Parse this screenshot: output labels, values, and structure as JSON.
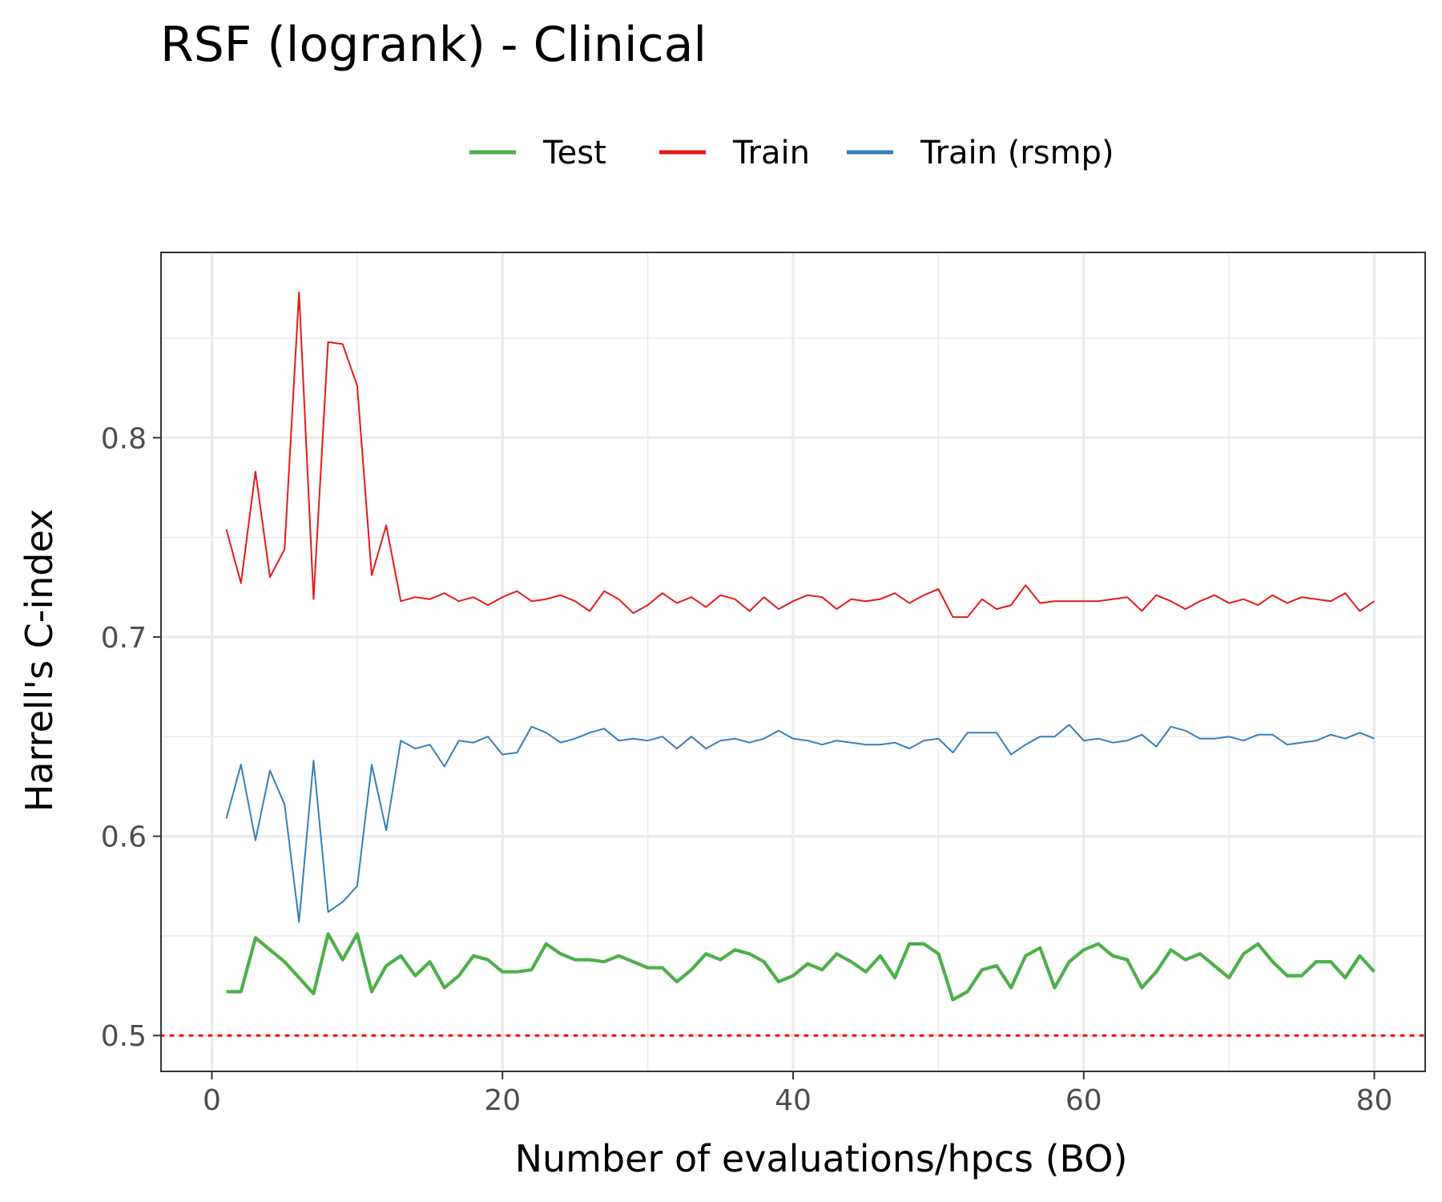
{
  "chart_data": {
    "type": "line",
    "title": "RSF (logrank) - Clinical",
    "xlabel": "Number of evaluations/hpcs (BO)",
    "ylabel": "Harrell's C-index",
    "xlim": [
      -3.5,
      83.5
    ],
    "ylim": [
      0.482,
      0.893
    ],
    "x_ticks": [
      0,
      20,
      40,
      60,
      80
    ],
    "x_tick_labels": [
      "0",
      "20",
      "40",
      "60",
      "80"
    ],
    "y_ticks": [
      0.5,
      0.6,
      0.7,
      0.8
    ],
    "y_tick_labels": [
      "0.5",
      "0.6",
      "0.7",
      "0.8"
    ],
    "grid": true,
    "legend_position": "top",
    "reference_line": {
      "y": 0.5,
      "style": "dotted",
      "color": "#FF0000"
    },
    "x": [
      1,
      2,
      3,
      4,
      5,
      6,
      7,
      8,
      9,
      10,
      11,
      12,
      13,
      14,
      15,
      16,
      17,
      18,
      19,
      20,
      21,
      22,
      23,
      24,
      25,
      26,
      27,
      28,
      29,
      30,
      31,
      32,
      33,
      34,
      35,
      36,
      37,
      38,
      39,
      40,
      41,
      42,
      43,
      44,
      45,
      46,
      47,
      48,
      49,
      50,
      51,
      52,
      53,
      54,
      55,
      56,
      57,
      58,
      59,
      60,
      61,
      62,
      63,
      64,
      65,
      66,
      67,
      68,
      69,
      70,
      71,
      72,
      73,
      74,
      75,
      76,
      77,
      78,
      79,
      80
    ],
    "series": [
      {
        "name": "Test",
        "color": "#4DAF4A",
        "values": [
          0.522,
          0.522,
          0.549,
          0.543,
          0.537,
          0.529,
          0.521,
          0.551,
          0.538,
          0.551,
          0.522,
          0.535,
          0.54,
          0.53,
          0.537,
          0.524,
          0.53,
          0.54,
          0.538,
          0.532,
          0.532,
          0.533,
          0.546,
          0.541,
          0.538,
          0.538,
          0.537,
          0.54,
          0.537,
          0.534,
          0.534,
          0.527,
          0.533,
          0.541,
          0.538,
          0.543,
          0.541,
          0.537,
          0.527,
          0.53,
          0.536,
          0.533,
          0.541,
          0.537,
          0.532,
          0.54,
          0.529,
          0.546,
          0.546,
          0.541,
          0.518,
          0.522,
          0.533,
          0.535,
          0.524,
          0.54,
          0.544,
          0.524,
          0.537,
          0.543,
          0.546,
          0.54,
          0.538,
          0.524,
          0.532,
          0.543,
          0.538,
          0.541,
          0.535,
          0.529,
          0.541,
          0.546,
          0.537,
          0.53,
          0.53,
          0.537,
          0.537,
          0.529,
          0.54,
          0.532
        ]
      },
      {
        "name": "Train",
        "color": "#E41A1C",
        "values": [
          0.754,
          0.727,
          0.783,
          0.73,
          0.744,
          0.873,
          0.719,
          0.848,
          0.847,
          0.826,
          0.731,
          0.756,
          0.718,
          0.72,
          0.719,
          0.722,
          0.718,
          0.72,
          0.716,
          0.72,
          0.723,
          0.718,
          0.719,
          0.721,
          0.718,
          0.713,
          0.723,
          0.719,
          0.712,
          0.716,
          0.722,
          0.717,
          0.72,
          0.715,
          0.721,
          0.719,
          0.713,
          0.72,
          0.714,
          0.718,
          0.721,
          0.72,
          0.714,
          0.719,
          0.718,
          0.719,
          0.722,
          0.717,
          0.721,
          0.724,
          0.71,
          0.71,
          0.719,
          0.714,
          0.716,
          0.726,
          0.717,
          0.718,
          0.718,
          0.718,
          0.718,
          0.719,
          0.72,
          0.713,
          0.721,
          0.718,
          0.714,
          0.718,
          0.721,
          0.717,
          0.719,
          0.716,
          0.721,
          0.717,
          0.72,
          0.719,
          0.718,
          0.722,
          0.713,
          0.718
        ]
      },
      {
        "name": "Train (rsmp)",
        "color": "#377EB8",
        "values": [
          0.609,
          0.636,
          0.598,
          0.633,
          0.616,
          0.557,
          0.638,
          0.562,
          0.567,
          0.575,
          0.636,
          0.603,
          0.648,
          0.644,
          0.646,
          0.635,
          0.648,
          0.647,
          0.65,
          0.641,
          0.642,
          0.655,
          0.652,
          0.647,
          0.649,
          0.652,
          0.654,
          0.648,
          0.649,
          0.648,
          0.65,
          0.644,
          0.65,
          0.644,
          0.648,
          0.649,
          0.647,
          0.649,
          0.653,
          0.649,
          0.648,
          0.646,
          0.648,
          0.647,
          0.646,
          0.646,
          0.647,
          0.644,
          0.648,
          0.649,
          0.642,
          0.652,
          0.652,
          0.652,
          0.641,
          0.646,
          0.65,
          0.65,
          0.656,
          0.648,
          0.649,
          0.647,
          0.648,
          0.651,
          0.645,
          0.655,
          0.653,
          0.649,
          0.649,
          0.65,
          0.648,
          0.651,
          0.651,
          0.646,
          0.647,
          0.648,
          0.651,
          0.649,
          0.652,
          0.649
        ]
      }
    ]
  }
}
